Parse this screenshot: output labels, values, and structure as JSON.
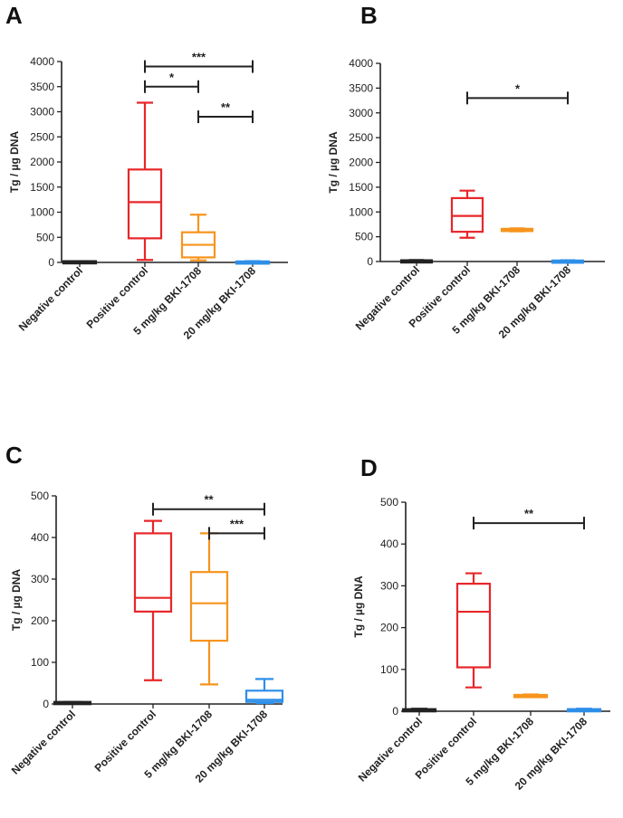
{
  "chart_data": [
    {
      "type": "boxplot",
      "panel_label": "A",
      "ylabel": "Tg / µg DNA",
      "ylim": [
        0,
        4000
      ],
      "yticks": [
        0,
        500,
        1000,
        1500,
        2000,
        2500,
        3000,
        3500,
        4000
      ],
      "categories": [
        "Negative control",
        "Positive control",
        "5 mg/kg BKI-1708",
        "20 mg/kg BKI-1708"
      ],
      "colors": [
        "#222222",
        "#e8262a",
        "#f7941d",
        "#2e8fe8"
      ],
      "series": [
        {
          "min": 20,
          "q1": 20,
          "median": 20,
          "q3": 25,
          "max": 25
        },
        {
          "min": 50,
          "q1": 480,
          "median": 1200,
          "q3": 1850,
          "max": 3180
        },
        {
          "min": 40,
          "q1": 100,
          "median": 350,
          "q3": 600,
          "max": 950
        },
        {
          "min": 5,
          "q1": 10,
          "median": 15,
          "q3": 20,
          "max": 25
        }
      ],
      "significance": [
        {
          "from": 1,
          "to": 3,
          "y": 3900,
          "label": "***"
        },
        {
          "from": 1,
          "to": 2,
          "y": 3500,
          "label": "*"
        },
        {
          "from": 2,
          "to": 3,
          "y": 2900,
          "label": "**"
        }
      ]
    },
    {
      "type": "boxplot",
      "panel_label": "B",
      "ylabel": "Tg / µg DNA",
      "ylim": [
        0,
        4000
      ],
      "yticks": [
        0,
        500,
        1000,
        1500,
        2000,
        2500,
        3000,
        3500,
        4000
      ],
      "categories": [
        "Negative control",
        "Positive control",
        "5 mg/kg BKI-1708",
        "20 mg/kg BKI-1708"
      ],
      "colors": [
        "#222222",
        "#e8262a",
        "#f7941d",
        "#2e8fe8"
      ],
      "series": [
        {
          "min": 10,
          "q1": 15,
          "median": 20,
          "q3": 25,
          "max": 30
        },
        {
          "min": 480,
          "q1": 600,
          "median": 920,
          "q3": 1280,
          "max": 1430
        },
        {
          "min": 610,
          "q1": 620,
          "median": 640,
          "q3": 660,
          "max": 670
        },
        {
          "min": 5,
          "q1": 10,
          "median": 15,
          "q3": 20,
          "max": 25
        }
      ],
      "significance": [
        {
          "from": 1,
          "to": 3,
          "y": 3300,
          "label": "*"
        }
      ]
    },
    {
      "type": "boxplot",
      "panel_label": "C",
      "ylabel": "Tg / µg DNA",
      "ylim": [
        0,
        500
      ],
      "yticks": [
        0,
        100,
        200,
        300,
        400,
        500
      ],
      "categories": [
        "Negative control",
        "Positive control",
        "5 mg/kg BKI-1708",
        "20 mg/kg BKI-1708"
      ],
      "colors": [
        "#222222",
        "#e8262a",
        "#f7941d",
        "#2e8fe8"
      ],
      "series": [
        {
          "min": 3,
          "q1": 3,
          "median": 4,
          "q3": 5,
          "max": 5
        },
        {
          "min": 57,
          "q1": 222,
          "median": 255,
          "q3": 410,
          "max": 440
        },
        {
          "min": 47,
          "q1": 152,
          "median": 242,
          "q3": 317,
          "max": 410
        },
        {
          "min": 2,
          "q1": 5,
          "median": 10,
          "q3": 32,
          "max": 60
        }
      ],
      "significance": [
        {
          "from": 1,
          "to": 3,
          "y": 468,
          "label": "**"
        },
        {
          "from": 2,
          "to": 3,
          "y": 410,
          "label": "***"
        }
      ]
    },
    {
      "type": "boxplot",
      "panel_label": "D",
      "ylabel": "Tg / µg DNA",
      "ylim": [
        0,
        500
      ],
      "yticks": [
        0,
        100,
        200,
        300,
        400,
        500
      ],
      "categories": [
        "Negative control",
        "Positive control",
        "5 mg/kg BKI-1708",
        "20 mg/kg BKI-1708"
      ],
      "colors": [
        "#222222",
        "#e8262a",
        "#f7941d",
        "#2e8fe8"
      ],
      "series": [
        {
          "min": 2,
          "q1": 3,
          "median": 4,
          "q3": 5,
          "max": 6
        },
        {
          "min": 57,
          "q1": 105,
          "median": 238,
          "q3": 305,
          "max": 330
        },
        {
          "min": 34,
          "q1": 35,
          "median": 37,
          "q3": 39,
          "max": 40
        },
        {
          "min": 2,
          "q1": 3,
          "median": 4,
          "q3": 5,
          "max": 6
        }
      ],
      "significance": [
        {
          "from": 1,
          "to": 3,
          "y": 450,
          "label": "**"
        }
      ]
    }
  ]
}
